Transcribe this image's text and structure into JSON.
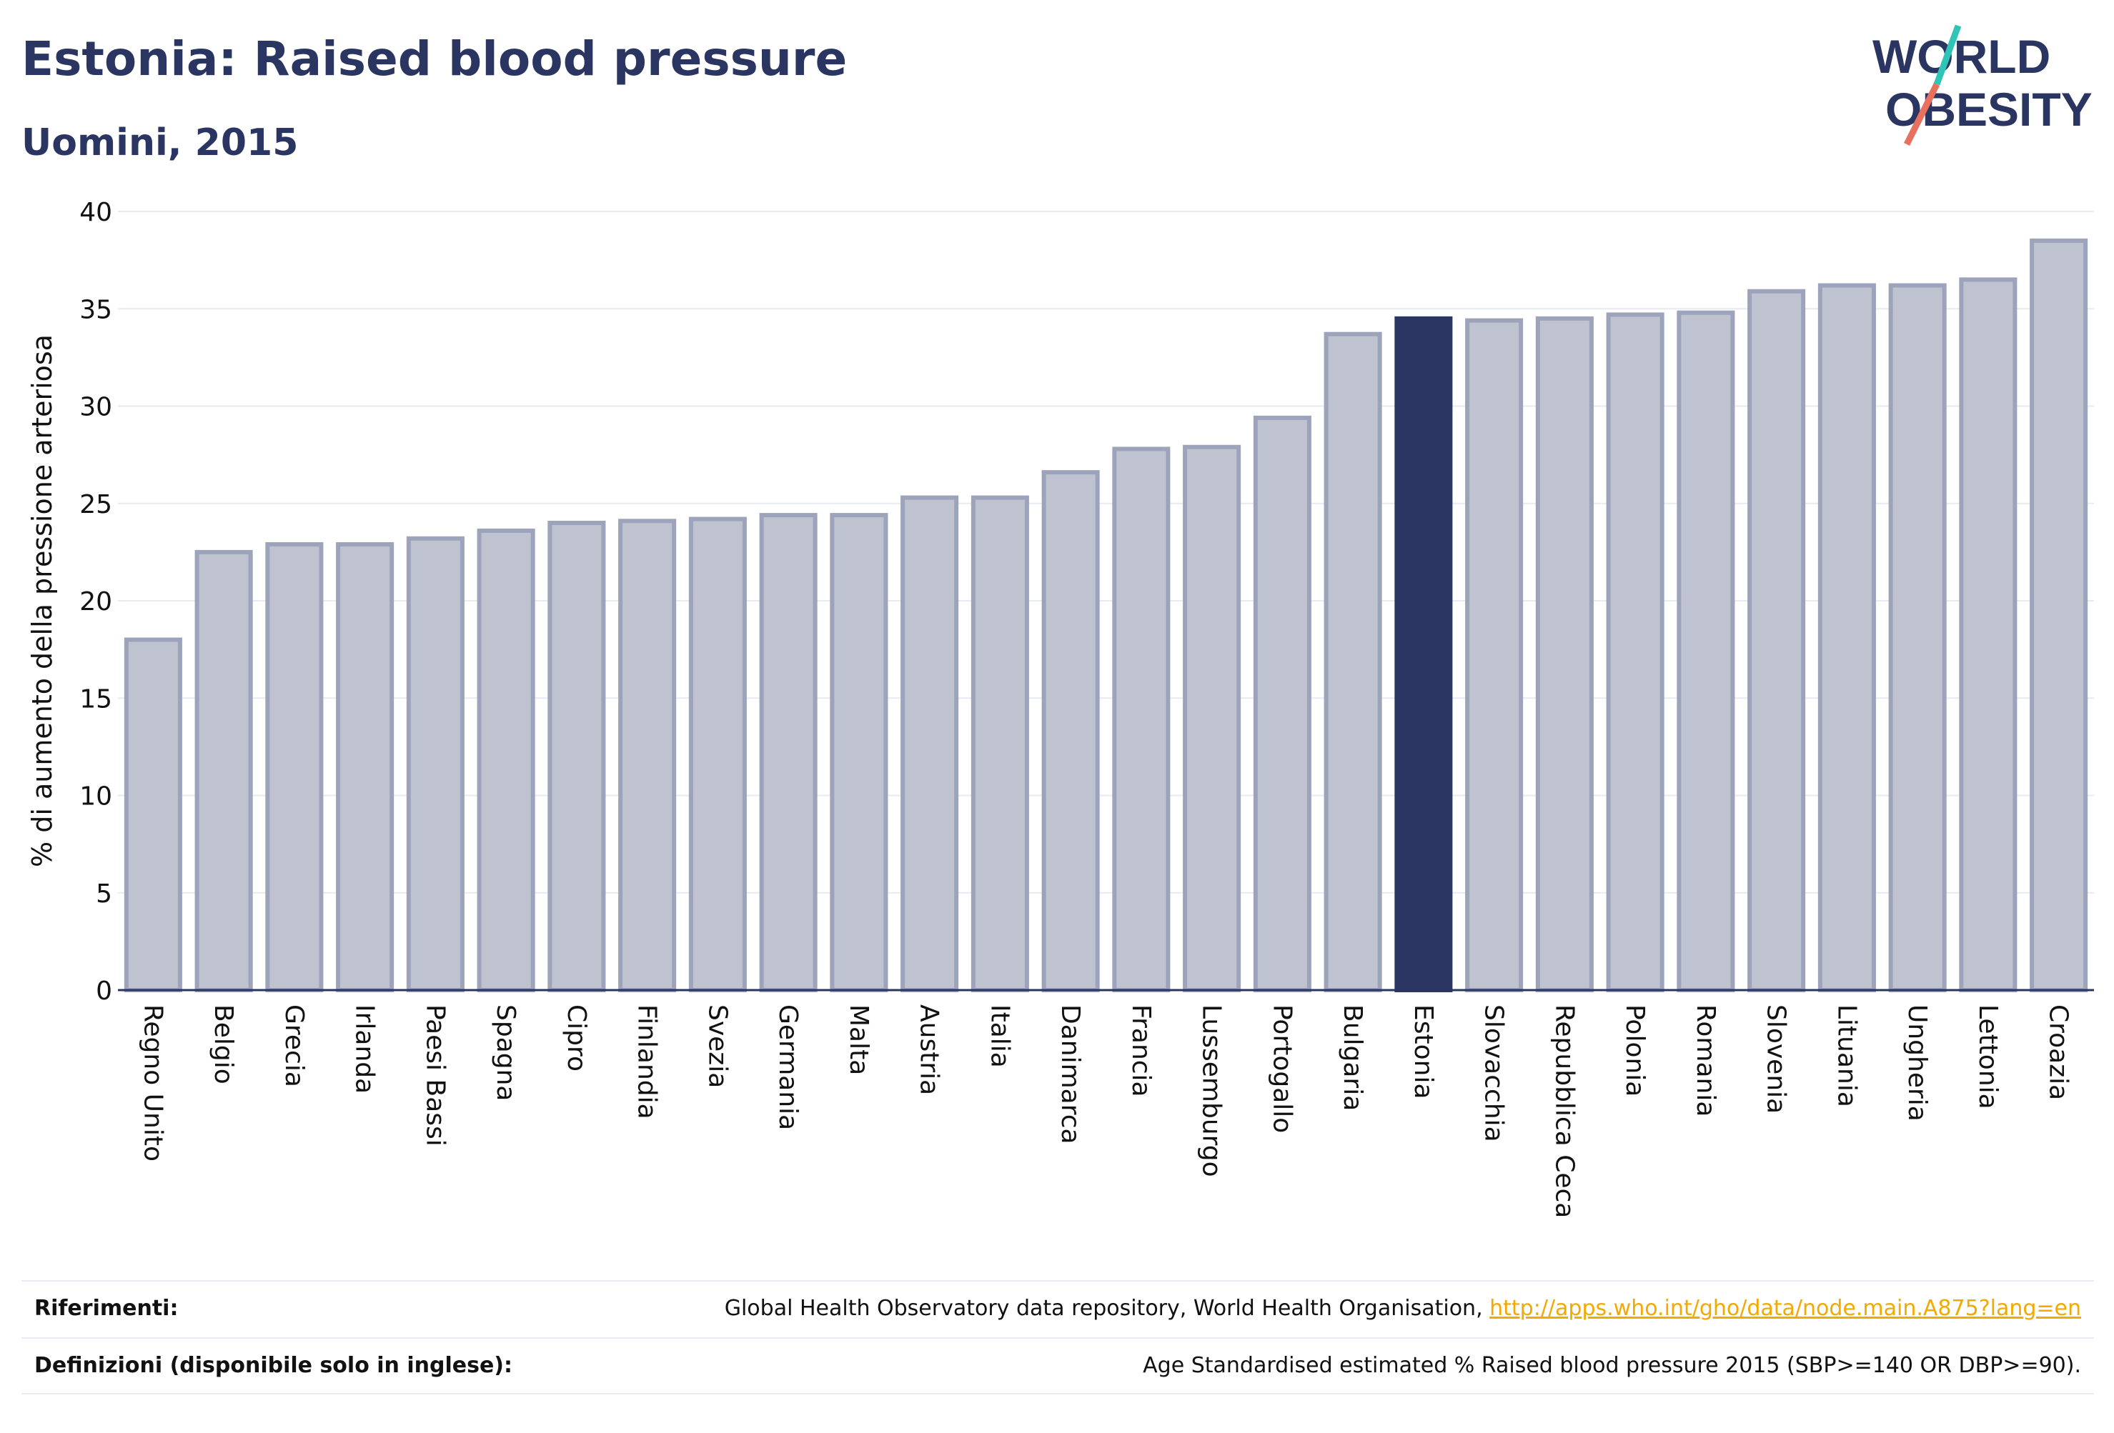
{
  "header": {
    "title": "Estonia: Raised blood pressure",
    "subtitle": "Uomini, 2015"
  },
  "logo": {
    "line1": "WORLD",
    "line2": "OBESITY",
    "accent_teal": "#2ec4b6",
    "accent_coral": "#e8705f"
  },
  "colors": {
    "bar_fill": "#bfc3d0",
    "bar_stroke": "#9ca3ba",
    "highlight": "#2a3562",
    "grid": "#e8eaf1",
    "text": "#2a3562"
  },
  "chart_data": {
    "type": "bar",
    "ylabel": "% di aumento della pressione arteriosa",
    "ylim": [
      0,
      40
    ],
    "yticks": [
      0,
      5,
      10,
      15,
      20,
      25,
      30,
      35,
      40
    ],
    "grid": true,
    "highlight": "Estonia",
    "categories": [
      "Regno Unito",
      "Belgio",
      "Grecia",
      "Irlanda",
      "Paesi Bassi",
      "Spagna",
      "Cipro",
      "Finlandia",
      "Svezia",
      "Germania",
      "Malta",
      "Austria",
      "Italia",
      "Danimarca",
      "Francia",
      "Lussemburgo",
      "Portogallo",
      "Bulgaria",
      "Estonia",
      "Slovacchia",
      "Repubblica Ceca",
      "Polonia",
      "Romania",
      "Slovenia",
      "Lituania",
      "Ungheria",
      "Lettonia",
      "Croazia"
    ],
    "values": [
      18.0,
      22.5,
      22.9,
      22.9,
      23.2,
      23.6,
      24.0,
      24.1,
      24.2,
      24.4,
      24.4,
      25.3,
      25.3,
      26.6,
      27.8,
      27.9,
      29.4,
      33.7,
      34.5,
      34.4,
      34.5,
      34.7,
      34.8,
      35.9,
      36.2,
      36.2,
      36.5,
      38.5
    ]
  },
  "footer": {
    "references_label": "Riferimenti:",
    "references_text": "Global Health Observatory data repository, World Health Organisation, ",
    "references_link": "http://apps.who.int/gho/data/node.main.A875?lang=en",
    "definitions_label": "Definizioni (disponibile solo in inglese):",
    "definitions_text": "Age Standardised estimated % Raised blood pressure 2015 (SBP>=140 OR DBP>=90)."
  }
}
